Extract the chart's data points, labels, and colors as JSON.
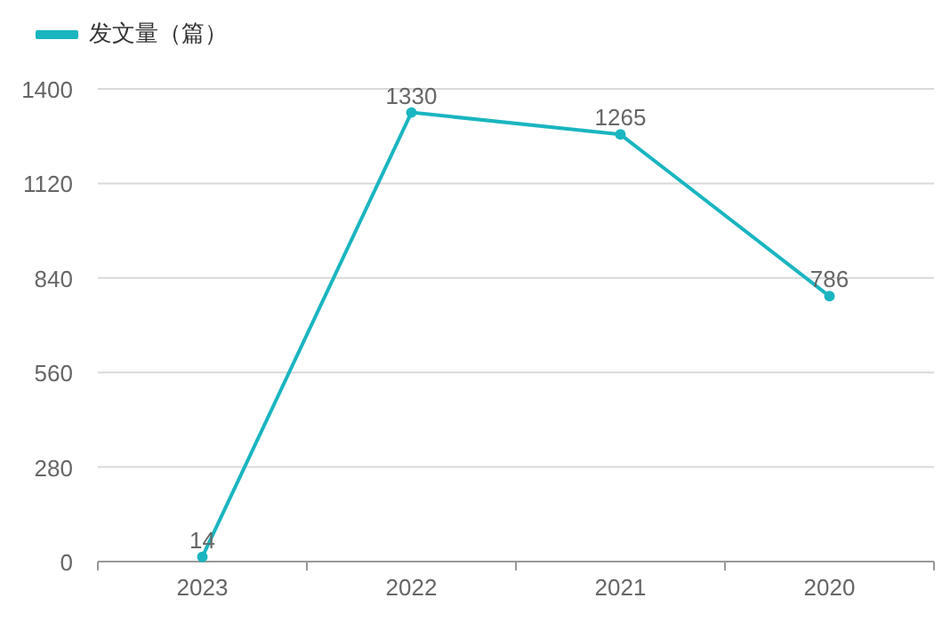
{
  "chart_data": {
    "type": "line",
    "categories": [
      "2023",
      "2022",
      "2021",
      "2020"
    ],
    "series": [
      {
        "name": "发文量（篇）",
        "color": "#1ab5c0",
        "values": [
          14,
          1330,
          1265,
          786
        ]
      }
    ],
    "ylim": [
      0,
      1400
    ],
    "yticks": [
      0,
      280,
      560,
      840,
      1120,
      1400
    ],
    "grid": "y",
    "legend": "top left",
    "marker": "circle",
    "data_labels": true
  }
}
